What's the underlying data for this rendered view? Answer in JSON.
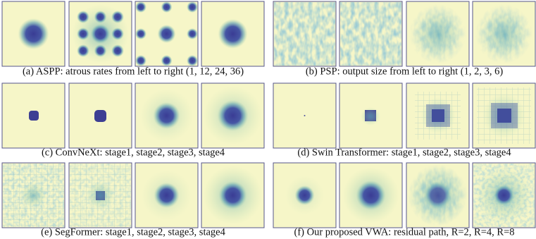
{
  "panels": [
    {
      "caption": "(a) ASPP: atrous rates from left to right (1, 12, 24, 36)"
    },
    {
      "caption": "(b) PSP: output size from left to right (1, 2, 3, 6)"
    },
    {
      "caption": "(c) ConvNeXt: stage1, stage2, stage3, stage4"
    },
    {
      "caption": "(d) Swin Transformer: stage1, stage2, stage3, stage4"
    },
    {
      "caption": "(e) SegFormer: stage1, stage2, stage3, stage4"
    },
    {
      "caption": "(f) Our proposed VWA: residual path, R=2, R=4, R=8"
    }
  ]
}
